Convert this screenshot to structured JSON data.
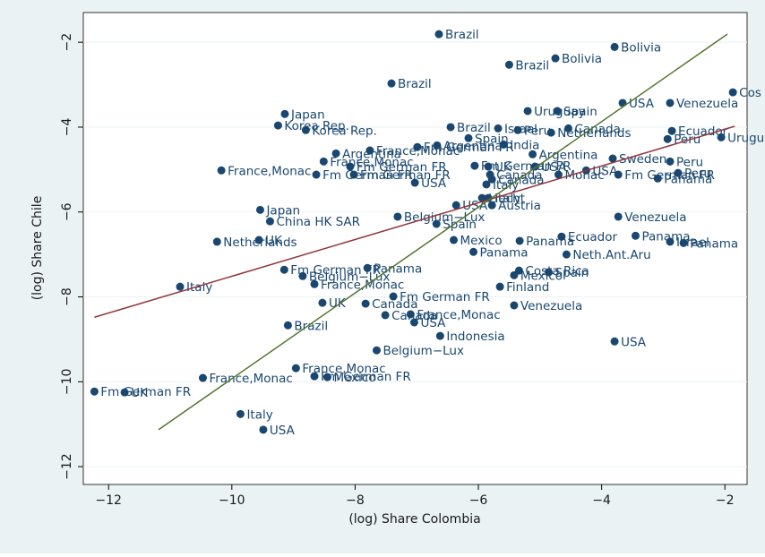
{
  "chart_data": {
    "type": "scatter",
    "xlabel": "(log) Share Colombia",
    "ylabel": "(log) Share Chile",
    "xlim": [
      -12.41,
      -1.64
    ],
    "ylim": [
      -12.42,
      -1.3
    ],
    "xticks": [
      {
        "value": -12,
        "label": "−12"
      },
      {
        "value": -10,
        "label": "−10"
      },
      {
        "value": -8,
        "label": "−8"
      },
      {
        "value": -6,
        "label": "−6"
      },
      {
        "value": -4,
        "label": "−4"
      },
      {
        "value": -2,
        "label": "−2"
      }
    ],
    "yticks": [
      {
        "value": -2,
        "label": "−2"
      },
      {
        "value": -4,
        "label": "−4"
      },
      {
        "value": -6,
        "label": "−6"
      },
      {
        "value": -8,
        "label": "−8"
      },
      {
        "value": -10,
        "label": "−10"
      },
      {
        "value": -12,
        "label": "−12"
      }
    ],
    "grid": true,
    "series": [
      {
        "color": "#1a476f",
        "x": [
          -6.64,
          -3.79,
          -5.5,
          -4.75,
          -7.41,
          -1.87,
          -3.66,
          -2.89,
          -5.2,
          -4.72,
          -9.14,
          -9.25,
          -8.8,
          -6.45,
          -5.68,
          -5.36,
          -4.54,
          -4.82,
          -2.86,
          -2.93,
          -2.06,
          -6.16,
          -5.59,
          -5.12,
          -8.31,
          -7.76,
          -6.99,
          -6.67,
          -8.51,
          -8.08,
          -10.17,
          -8.63,
          -8.02,
          -7.03,
          -6.06,
          -5.84,
          -5.08,
          -5.81,
          -5.78,
          -4.25,
          -4.7,
          -3.82,
          -2.89,
          -3.73,
          -2.76,
          -3.09,
          -5.87,
          -5.84,
          -5.94,
          -6.36,
          -5.78,
          -9.54,
          -9.38,
          -7.31,
          -6.68,
          -3.73,
          -10.24,
          -9.56,
          -6.4,
          -5.33,
          -4.65,
          -3.45,
          -2.89,
          -2.67,
          -6.08,
          -4.57,
          -9.15,
          -7.8,
          -8.85,
          -8.66,
          -10.84,
          -5.34,
          -5.42,
          -4.86,
          -5.65,
          -7.38,
          -8.53,
          -7.83,
          -5.42,
          -7.1,
          -7.51,
          -7.04,
          -9.09,
          -6.62,
          -3.79,
          -7.65,
          -8.96,
          -8.66,
          -8.45,
          -10.47,
          -12.23,
          -11.74,
          -9.86,
          -9.49
        ],
        "values": [
          -1.81,
          -2.11,
          -2.53,
          -2.38,
          -2.97,
          -3.18,
          -3.43,
          -3.43,
          -3.62,
          -3.62,
          -3.69,
          -3.96,
          -4.07,
          -4.0,
          -4.03,
          -4.07,
          -4.03,
          -4.13,
          -4.09,
          -4.28,
          -4.24,
          -4.26,
          -4.41,
          -4.64,
          -4.62,
          -4.55,
          -4.47,
          -4.43,
          -4.81,
          -4.93,
          -5.02,
          -5.12,
          -5.12,
          -5.31,
          -4.91,
          -4.93,
          -4.93,
          -5.12,
          -5.23,
          -5.02,
          -5.12,
          -4.74,
          -4.81,
          -5.12,
          -5.08,
          -5.21,
          -5.35,
          -5.67,
          -5.67,
          -5.84,
          -5.84,
          -5.95,
          -6.22,
          -6.11,
          -6.28,
          -6.11,
          -6.7,
          -6.66,
          -6.66,
          -6.68,
          -6.58,
          -6.56,
          -6.7,
          -6.73,
          -6.94,
          -7.0,
          -7.36,
          -7.32,
          -7.51,
          -7.7,
          -7.76,
          -7.38,
          -7.49,
          -7.42,
          -7.76,
          -7.99,
          -8.14,
          -8.16,
          -8.2,
          -8.41,
          -8.43,
          -8.6,
          -8.67,
          -8.92,
          -9.05,
          -9.26,
          -9.68,
          -9.87,
          -9.89,
          -9.91,
          -10.23,
          -10.25,
          -10.76,
          -11.13
        ],
        "labels": [
          "Brazil",
          "Bolivia",
          "Brazil",
          "Bolivia",
          "Brazil",
          "Cos",
          "USA",
          "Venezuela",
          "Uruguay",
          "Spain",
          "Japan",
          "Korea Rep.",
          "Korea Rep.",
          "Brazil",
          "Israel",
          "Peru",
          "Canada",
          "Netherlands",
          "Ecuador",
          "Peru",
          "Urugu",
          "Spain",
          "India",
          "Argentina",
          "Argentina",
          "France,Monac",
          "Fm German FR",
          "Argentina",
          "France,Monac",
          "Fm German FR",
          "France,Monac",
          "Fm German FR",
          "Fm German FR",
          "USA",
          "Fm German FR",
          "UK",
          "USA",
          "Canada",
          "Canada",
          "USA",
          "Monac",
          "Sweden",
          "Peru",
          "Fm German FR",
          "Peru",
          "Panama",
          "Italy",
          "Italy",
          "Liecht",
          "USA",
          "Austria",
          "Japan",
          "China HK SAR",
          "Belgium−Lux",
          "Spain",
          "Venezuela",
          "Netherlands",
          "UK",
          "Mexico",
          "Panama",
          "Ecuador",
          "Panama",
          "Israel",
          "Panama",
          "Panama",
          "Neth.Ant.Aru",
          "Fm German FR",
          "Panama",
          "Belgium−Lux",
          "France,Monac",
          "Italy",
          "Costa Rica",
          "Mexico",
          "Spain",
          "Finland",
          "Fm German FR",
          "UK",
          "Canada",
          "Venezuela",
          "France,Monac",
          "Canada",
          "USA",
          "Brazil",
          "Indonesia",
          "USA",
          "Belgium−Lux",
          "France,Monac",
          "Fm German FR",
          "Mexico",
          "France,Monac",
          "Fm German FR",
          "UK",
          "Italy",
          "USA"
        ]
      }
    ],
    "lines": [
      {
        "color": "#90353b",
        "x": [
          -12.23,
          -1.84
        ],
        "values": [
          -8.48,
          -3.98
        ]
      },
      {
        "color": "#55752f",
        "x": [
          -11.19,
          -1.96
        ],
        "values": [
          -11.13,
          -1.81
        ]
      }
    ]
  }
}
